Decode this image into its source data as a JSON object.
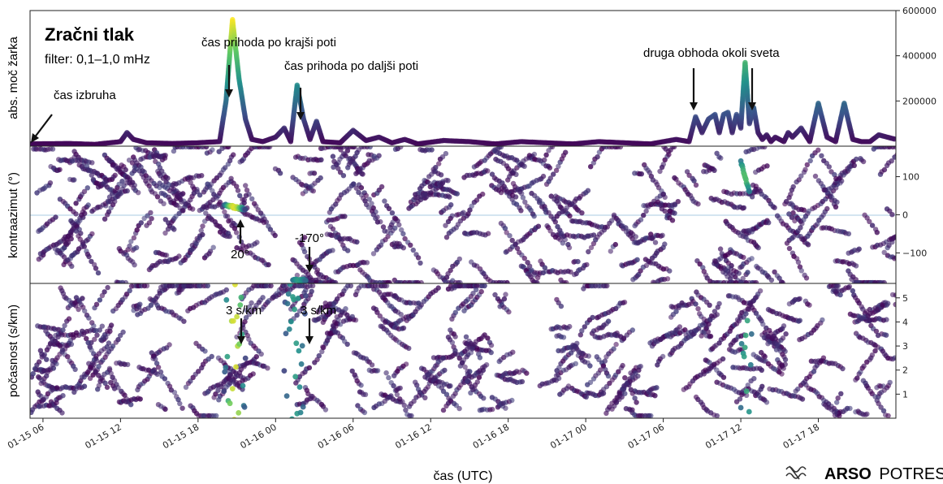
{
  "chart_data": [
    {
      "type": "line",
      "panel": "top",
      "title": "Zračni tlak",
      "subtitle": "filter: 0,1–1,0 mHz",
      "ylabel": "abs. moč žarka",
      "ylim": [
        0,
        600000
      ],
      "yticks": [
        200000,
        400000,
        600000
      ],
      "ytick_labels": [
        "200000",
        "400000",
        "600000"
      ],
      "yaxis_side": "right",
      "colormap": "viridis",
      "series": [
        {
          "x": [
            "2022-01-15 05:00",
            "2022-01-15 08:00",
            "2022-01-15 10:00",
            "2022-01-15 12:00",
            "2022-01-15 12:30",
            "2022-01-15 13:00",
            "2022-01-15 14:00",
            "2022-01-15 16:00",
            "2022-01-15 18:00",
            "2022-01-15 19:40",
            "2022-01-15 20:10",
            "2022-01-15 20:40",
            "2022-01-15 21:10",
            "2022-01-15 21:40",
            "2022-01-15 22:10",
            "2022-01-15 23:00",
            "2022-01-16 00:00",
            "2022-01-16 00:40",
            "2022-01-16 01:10",
            "2022-01-16 01:40",
            "2022-01-16 02:10",
            "2022-01-16 02:40",
            "2022-01-16 03:10",
            "2022-01-16 03:40",
            "2022-01-16 05:00",
            "2022-01-16 06:00",
            "2022-01-16 07:00",
            "2022-01-16 08:00",
            "2022-01-16 09:00",
            "2022-01-16 10:00",
            "2022-01-16 11:00",
            "2022-01-16 13:00",
            "2022-01-16 15:00",
            "2022-01-16 17:00",
            "2022-01-16 19:00",
            "2022-01-16 21:00",
            "2022-01-16 23:00",
            "2022-01-17 01:00",
            "2022-01-17 03:00",
            "2022-01-17 05:00",
            "2022-01-17 07:00",
            "2022-01-17 08:00",
            "2022-01-17 08:30",
            "2022-01-17 09:00",
            "2022-01-17 09:30",
            "2022-01-17 10:00",
            "2022-01-17 10:20",
            "2022-01-17 10:40",
            "2022-01-17 11:00",
            "2022-01-17 11:20",
            "2022-01-17 11:40",
            "2022-01-17 12:00",
            "2022-01-17 12:20",
            "2022-01-17 12:40",
            "2022-01-17 13:00",
            "2022-01-17 13:20",
            "2022-01-17 13:40",
            "2022-01-17 14:00",
            "2022-01-17 14:20",
            "2022-01-17 14:40",
            "2022-01-17 15:00",
            "2022-01-17 15:20",
            "2022-01-17 15:40",
            "2022-01-17 16:00",
            "2022-01-17 16:40",
            "2022-01-17 17:20",
            "2022-01-17 18:00",
            "2022-01-17 18:40",
            "2022-01-17 19:20",
            "2022-01-17 20:00",
            "2022-01-17 20:40",
            "2022-01-17 21:20",
            "2022-01-17 22:00",
            "2022-01-17 22:40",
            "2022-01-17 23:20",
            "2022-01-18 00:00"
          ],
          "values": [
            10000,
            12000,
            8000,
            20000,
            60000,
            30000,
            15000,
            12000,
            15000,
            20000,
            200000,
            560000,
            300000,
            120000,
            30000,
            20000,
            40000,
            80000,
            20000,
            270000,
            120000,
            30000,
            110000,
            20000,
            15000,
            70000,
            25000,
            40000,
            15000,
            30000,
            10000,
            25000,
            20000,
            10000,
            20000,
            15000,
            10000,
            20000,
            15000,
            10000,
            30000,
            20000,
            130000,
            60000,
            120000,
            140000,
            60000,
            140000,
            150000,
            60000,
            140000,
            80000,
            370000,
            100000,
            170000,
            60000,
            30000,
            50000,
            20000,
            40000,
            30000,
            20000,
            60000,
            40000,
            80000,
            20000,
            190000,
            40000,
            20000,
            190000,
            30000,
            20000,
            20000,
            50000,
            40000,
            30000
          ]
        }
      ]
    },
    {
      "type": "scatter",
      "panel": "middle",
      "ylabel": "kontraazimut (°)",
      "ylim": [
        -180,
        180
      ],
      "yticks": [
        100,
        0,
        -100
      ],
      "ytick_labels": [
        "100",
        "0",
        "−100"
      ],
      "yaxis_side": "right",
      "reference_line": 0
    },
    {
      "type": "scatter",
      "panel": "bottom",
      "ylabel": "počasnost (s/km)",
      "ylim": [
        0,
        5.6
      ],
      "yticks": [
        1,
        2,
        3,
        4,
        5
      ],
      "ytick_labels": [
        "1",
        "2",
        "3",
        "4",
        "5"
      ],
      "yaxis_side": "right",
      "xlabel": "čas (UTC)",
      "xlim": [
        "2022-01-15 05:00",
        "2022-01-18 00:00"
      ],
      "xticks": [
        "2022-01-15 06:00",
        "2022-01-15 12:00",
        "2022-01-15 18:00",
        "2022-01-16 00:00",
        "2022-01-16 06:00",
        "2022-01-16 12:00",
        "2022-01-16 18:00",
        "2022-01-17 00:00",
        "2022-01-17 06:00",
        "2022-01-17 12:00",
        "2022-01-17 18:00"
      ],
      "xtick_labels": [
        "01-15 06",
        "01-15 12",
        "01-15 18",
        "01-16 00",
        "01-16 06",
        "01-16 12",
        "01-16 18",
        "01-17 00",
        "01-17 06",
        "01-17 12",
        "01-17 18"
      ]
    }
  ],
  "annotations": {
    "eruption": "čas izbruha",
    "short_path": "čas prihoda po krajši poti",
    "long_path": "čas prihoda po daljši poti",
    "second_orbit": "druga obhoda okoli sveta",
    "az_short": "20°",
    "az_long": "-170°",
    "slow_short": "3 s/km",
    "slow_long": "3 s/km"
  },
  "logo": {
    "bold": "ARSO",
    "light": "POTRESI"
  },
  "colors": {
    "viridis_low": "#440154",
    "viridis_mid": "#21918c",
    "viridis_high": "#fde725",
    "zero_line": "#a9cbe0"
  }
}
